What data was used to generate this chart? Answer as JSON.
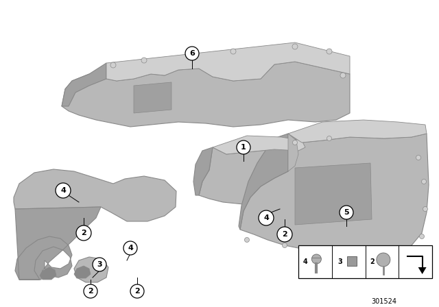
{
  "bg_color": "#ffffff",
  "part_color_main": "#b8b8b8",
  "part_color_light": "#d0d0d0",
  "part_color_dark": "#888888",
  "part_color_shadow": "#a0a0a0",
  "diagram_id": "301524"
}
